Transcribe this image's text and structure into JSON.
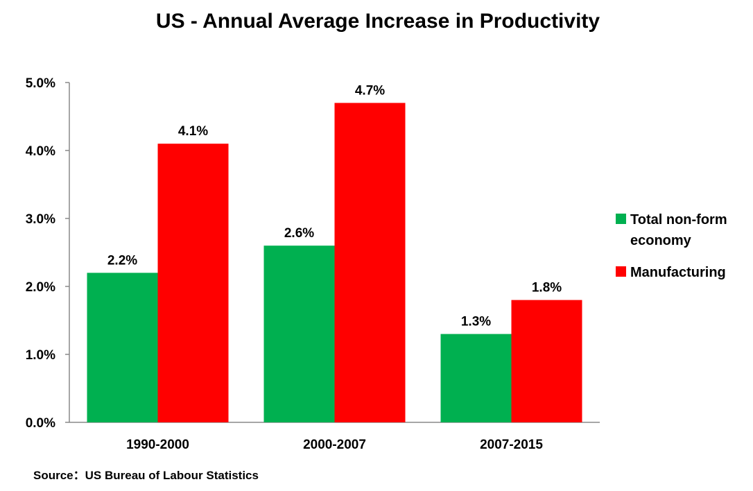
{
  "chart_data": {
    "type": "bar",
    "title": "US - Annual Average Increase in Productivity",
    "categories": [
      "1990-2000",
      "2000-2007",
      "2007-2015"
    ],
    "series": [
      {
        "name": "Total non-form economy",
        "name_lines": [
          "Total non-form",
          "economy"
        ],
        "color": "#00B050",
        "values": [
          2.2,
          2.6,
          1.3
        ],
        "labels": [
          "2.2%",
          "2.6%",
          "1.3%"
        ]
      },
      {
        "name": "Manufacturing",
        "name_lines": [
          "Manufacturing"
        ],
        "color": "#FF0000",
        "values": [
          4.1,
          4.7,
          1.8
        ],
        "labels": [
          "4.1%",
          "4.7%",
          "1.8%"
        ]
      }
    ],
    "ylim": [
      0,
      5
    ],
    "yticks": [
      "0.0%",
      "1.0%",
      "2.0%",
      "3.0%",
      "4.0%",
      "5.0%"
    ],
    "grid": false,
    "legend_position": "right",
    "source": "Source：US Bureau of Labour Statistics"
  }
}
